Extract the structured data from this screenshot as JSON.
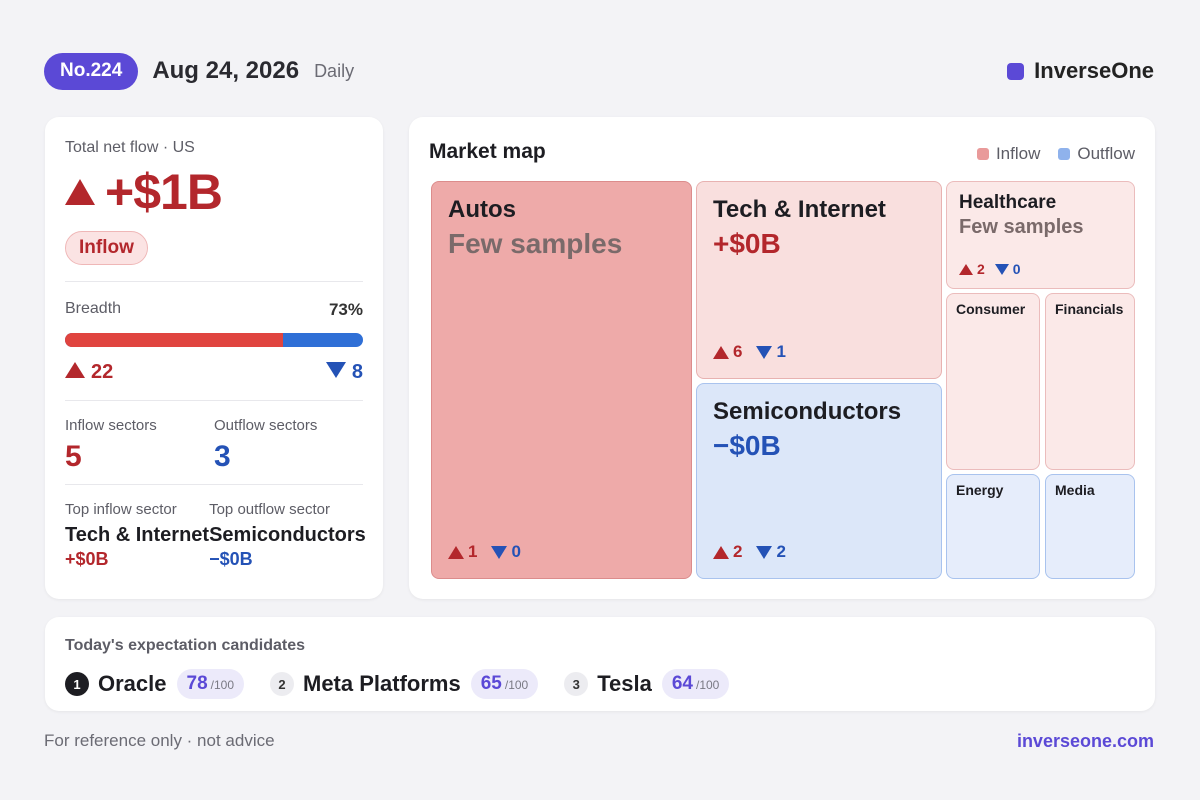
{
  "header": {
    "issue": "No.224",
    "date": "Aug 24, 2026",
    "frequency": "Daily",
    "brand": "InverseOne",
    "brand_color": "#5b49d6"
  },
  "summary": {
    "title": "Total net flow · US",
    "value": "+$1B",
    "direction": "up",
    "badge": "Inflow",
    "breadth_label": "Breadth",
    "breadth_pct": "73%",
    "breadth_fraction": 0.73,
    "up_count": "22",
    "down_count": "8",
    "inflow_sectors_label": "Inflow sectors",
    "inflow_sectors": "5",
    "outflow_sectors_label": "Outflow sectors",
    "outflow_sectors": "3",
    "top_inflow_label": "Top inflow sector",
    "top_inflow_name": "Tech & Internet",
    "top_inflow_value": "+$0B",
    "top_outflow_label": "Top outflow sector",
    "top_outflow_name": "Semiconductors",
    "top_outflow_value": "−$0B"
  },
  "market_map": {
    "title": "Market map",
    "legend_inflow": "Inflow",
    "legend_outflow": "Outflow",
    "colors": {
      "inflow": "#e99a9a",
      "outflow": "#8fb2ec",
      "up": "#b3272c",
      "down": "#2452b6"
    },
    "tiles": {
      "autos": {
        "name": "Autos",
        "sub": "Few samples",
        "up": "1",
        "down": "0"
      },
      "tech": {
        "name": "Tech & Internet",
        "sub": "+$0B",
        "up": "6",
        "down": "1"
      },
      "semis": {
        "name": "Semiconductors",
        "sub": "−$0B",
        "up": "2",
        "down": "2"
      },
      "healthcare": {
        "name": "Healthcare",
        "sub": "Few samples",
        "up": "2",
        "down": "0"
      },
      "consumer": {
        "name": "Consumer"
      },
      "financials": {
        "name": "Financials"
      },
      "energy": {
        "name": "Energy"
      },
      "media": {
        "name": "Media"
      }
    }
  },
  "candidates": {
    "title": "Today's expectation candidates",
    "items": [
      {
        "rank": "1",
        "name": "Oracle",
        "score": "78",
        "max": "/100"
      },
      {
        "rank": "2",
        "name": "Meta Platforms",
        "score": "65",
        "max": "/100"
      },
      {
        "rank": "3",
        "name": "Tesla",
        "score": "64",
        "max": "/100"
      }
    ]
  },
  "footer": {
    "disclaimer": "For reference only · not advice",
    "url": "inverseone.com"
  }
}
